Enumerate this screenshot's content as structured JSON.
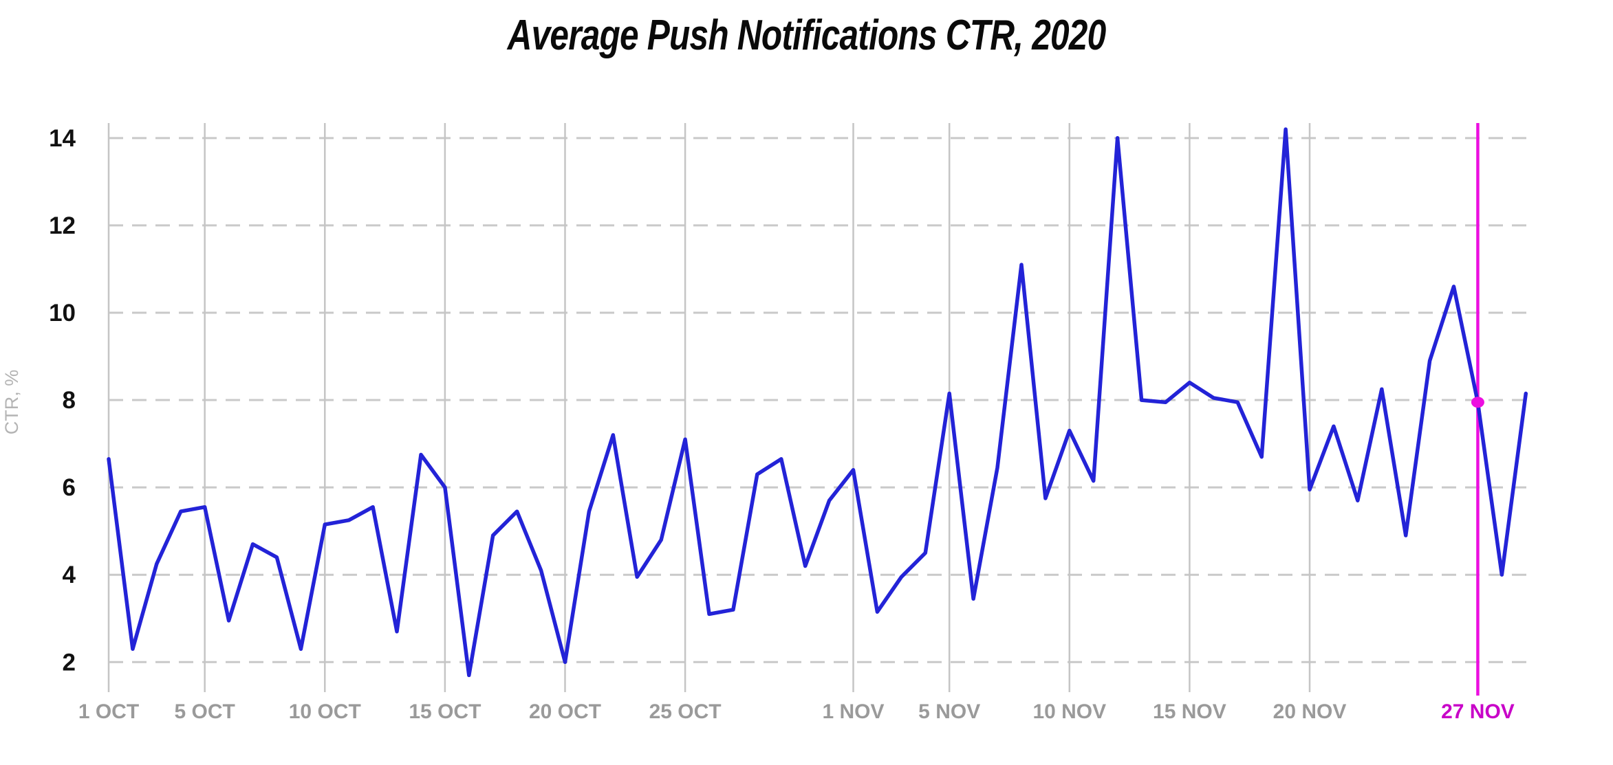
{
  "title": "Average Push Notifications CTR, 2020",
  "y_axis": {
    "label": "CTR, %",
    "ticks": [
      2,
      4,
      6,
      8,
      10,
      12,
      14
    ]
  },
  "x_axis": {
    "ticks": [
      {
        "label": "1 OCT",
        "day": 0
      },
      {
        "label": "5 OCT",
        "day": 4
      },
      {
        "label": "10 OCT",
        "day": 9
      },
      {
        "label": "15 OCT",
        "day": 14
      },
      {
        "label": "20 OCT",
        "day": 19
      },
      {
        "label": "25 OCT",
        "day": 24
      },
      {
        "label": "1 NOV",
        "day": 31
      },
      {
        "label": "5 NOV",
        "day": 35
      },
      {
        "label": "10 NOV",
        "day": 40
      },
      {
        "label": "15 NOV",
        "day": 45
      },
      {
        "label": "20 NOV",
        "day": 50
      },
      {
        "label": "27 NOV",
        "day": 57,
        "highlight": true
      }
    ]
  },
  "colors": {
    "line": "#2323d7",
    "highlight": "#ec0fe0",
    "highlight_label": "#c800c8",
    "grid_vertical": "#c5c5c5",
    "grid_dashed": "#c9c9c9",
    "x_tick_label": "#9a9a9a",
    "y_tick_label": "#111111",
    "y_axis_title": "#b4b4b4"
  },
  "chart_data": {
    "type": "line",
    "title": "Average Push Notifications CTR, 2020",
    "xlabel": "",
    "ylabel": "CTR, %",
    "ylim": [
      2,
      14
    ],
    "x_unit": "day",
    "x_domain": [
      "1 OCT 2020",
      "29 NOV 2020"
    ],
    "grid": "solid vertical date lines, dashed horizontal value lines",
    "legend": "none",
    "series": [
      {
        "name": "Average Push Notifications CTR",
        "color": "#2323d7",
        "values": [
          6.65,
          2.3,
          4.25,
          5.45,
          5.55,
          2.95,
          4.7,
          4.4,
          2.3,
          5.15,
          5.25,
          5.55,
          2.7,
          6.75,
          6.0,
          1.7,
          4.9,
          5.45,
          4.1,
          2.0,
          5.45,
          7.2,
          3.95,
          4.8,
          7.1,
          3.1,
          3.2,
          6.3,
          6.65,
          4.2,
          5.7,
          6.4,
          3.15,
          3.95,
          4.5,
          8.15,
          3.45,
          6.45,
          11.1,
          5.75,
          7.3,
          6.15,
          14.0,
          8.0,
          7.95,
          8.4,
          8.05,
          7.95,
          6.7,
          14.2,
          5.95,
          7.4,
          5.7,
          8.25,
          4.9,
          8.9,
          10.6,
          7.95,
          4.0,
          8.15
        ]
      }
    ],
    "highlight_point": {
      "label": "27 NOV",
      "day_index": 57,
      "value": 7.95,
      "color": "#ec0fe0"
    }
  }
}
